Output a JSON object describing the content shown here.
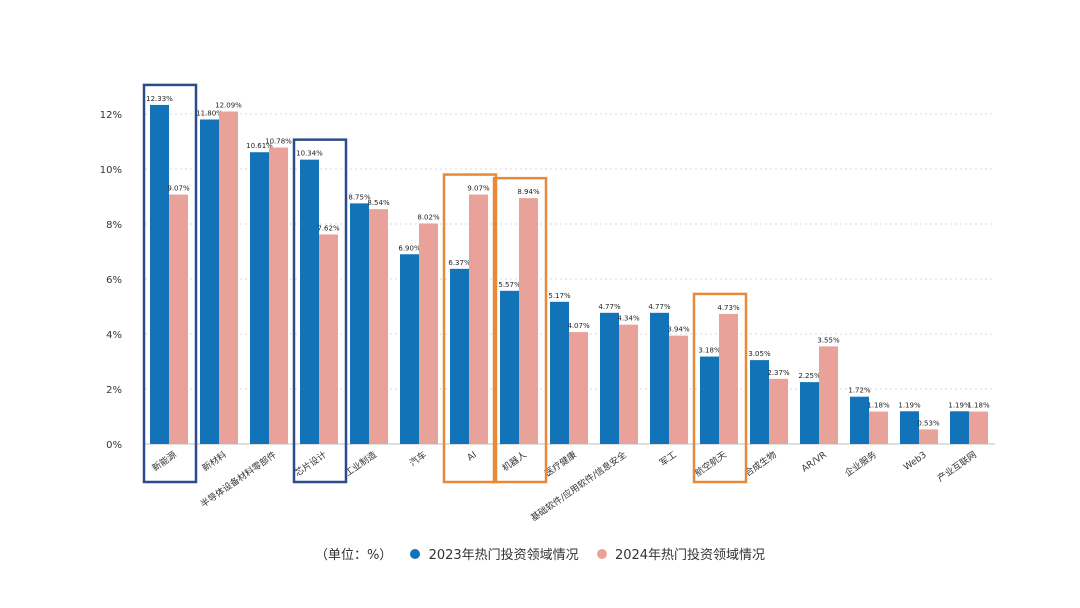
{
  "chart_data": {
    "type": "bar",
    "categories": [
      "新能源",
      "新材料",
      "半导体设备材料零部件",
      "芯片设计",
      "工业制造",
      "汽车",
      "AI",
      "机器人",
      "医疗健康",
      "基础软件/应用软件/信息安全",
      "军工",
      "航空航天",
      "合成生物",
      "AR/VR",
      "企业服务",
      "Web3",
      "产业互联网"
    ],
    "series": [
      {
        "name": "2023年热门投资领域情况",
        "color": "#1273b8",
        "values": [
          12.33,
          11.8,
          10.61,
          10.34,
          8.75,
          6.9,
          6.37,
          5.57,
          5.17,
          4.77,
          4.77,
          3.18,
          3.05,
          2.25,
          1.72,
          1.19,
          1.19
        ]
      },
      {
        "name": "2024年热门投资领域情况",
        "color": "#e9a29a",
        "values": [
          9.07,
          12.09,
          10.78,
          7.62,
          8.54,
          8.02,
          9.07,
          8.94,
          4.07,
          4.34,
          3.94,
          4.73,
          2.37,
          3.55,
          1.18,
          0.53,
          1.18
        ]
      }
    ],
    "data_labels": [
      [
        "12.33%",
        "11.80%",
        "10.61%",
        "10.34%",
        "8.75%",
        "6.90%",
        "6.37%",
        "5.57%",
        "5.17%",
        "4.77%",
        "4.77%",
        "3.18%",
        "3.05%",
        "2.25%",
        "1.72%",
        "1.19%",
        "1.19%"
      ],
      [
        "9.07%",
        "12.09%",
        "10.78%",
        "7.62%",
        "8.54%",
        "8.02%",
        "9.07%",
        "8.94%",
        "4.07%",
        "4.34%",
        "3.94%",
        "4.73%",
        "2.37%",
        "3.55%",
        "1.18%",
        "0.53%",
        "1.18%"
      ]
    ],
    "yticks": [
      0,
      2,
      4,
      6,
      8,
      10,
      12
    ],
    "ytick_labels": [
      "0%",
      "2%",
      "4%",
      "6%",
      "8%",
      "10%",
      "12%"
    ],
    "ylim": [
      0,
      13
    ],
    "grid": true,
    "highlight_boxes": [
      {
        "categories": [
          "新能源"
        ],
        "color": "#2d4a8a"
      },
      {
        "categories": [
          "芯片设计"
        ],
        "color": "#2d4a8a"
      },
      {
        "categories": [
          "AI"
        ],
        "color": "#e8893a"
      },
      {
        "categories": [
          "机器人"
        ],
        "color": "#e8893a"
      },
      {
        "categories": [
          "航空航天"
        ],
        "color": "#e8893a"
      }
    ],
    "unit_label": "（单位：%）"
  }
}
